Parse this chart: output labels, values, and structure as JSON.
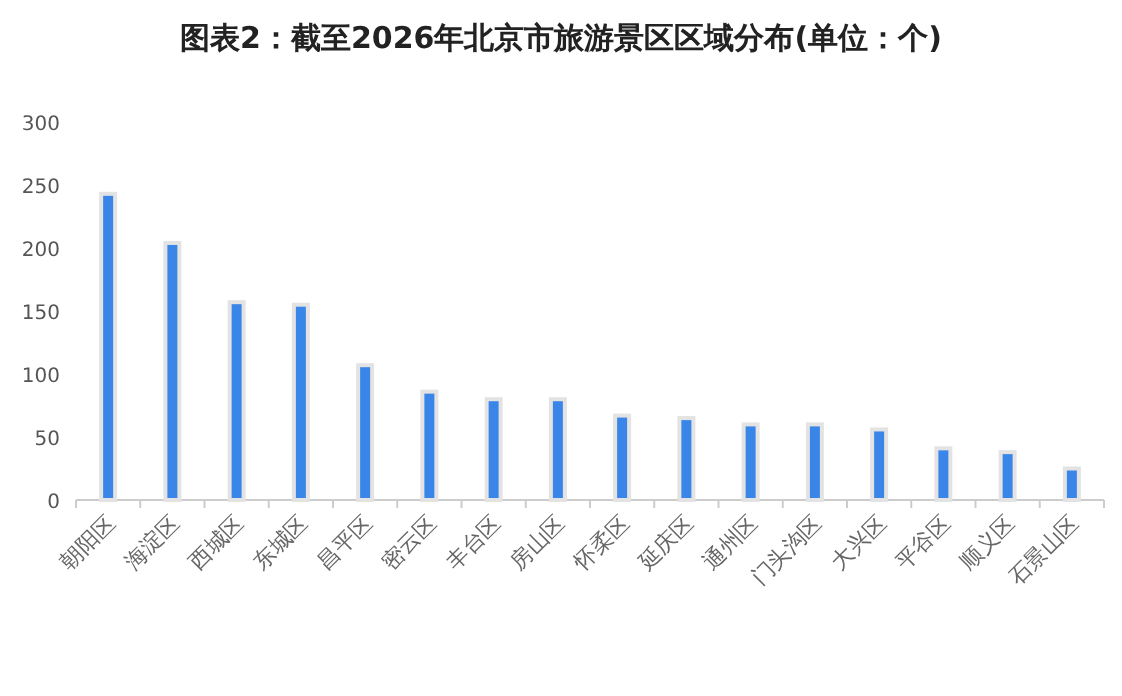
{
  "chart_data": {
    "type": "bar",
    "title": "图表2：截至2026年北京市旅游景区区域分布(单位：个)",
    "categories": [
      "朝阳区",
      "海淀区",
      "西城区",
      "东城区",
      "昌平区",
      "密云区",
      "丰台区",
      "房山区",
      "怀柔区",
      "延庆区",
      "通州区",
      "门头沟区",
      "大兴区",
      "平谷区",
      "顺义区",
      "石景山区"
    ],
    "values": [
      243,
      204,
      157,
      155,
      107,
      86,
      80,
      80,
      67,
      65,
      60,
      60,
      56,
      41,
      38,
      25
    ],
    "color": "#3a86e8",
    "ylim": [
      0,
      300
    ],
    "yticks": [
      0,
      50,
      100,
      150,
      200,
      250,
      300
    ],
    "grid": false
  }
}
